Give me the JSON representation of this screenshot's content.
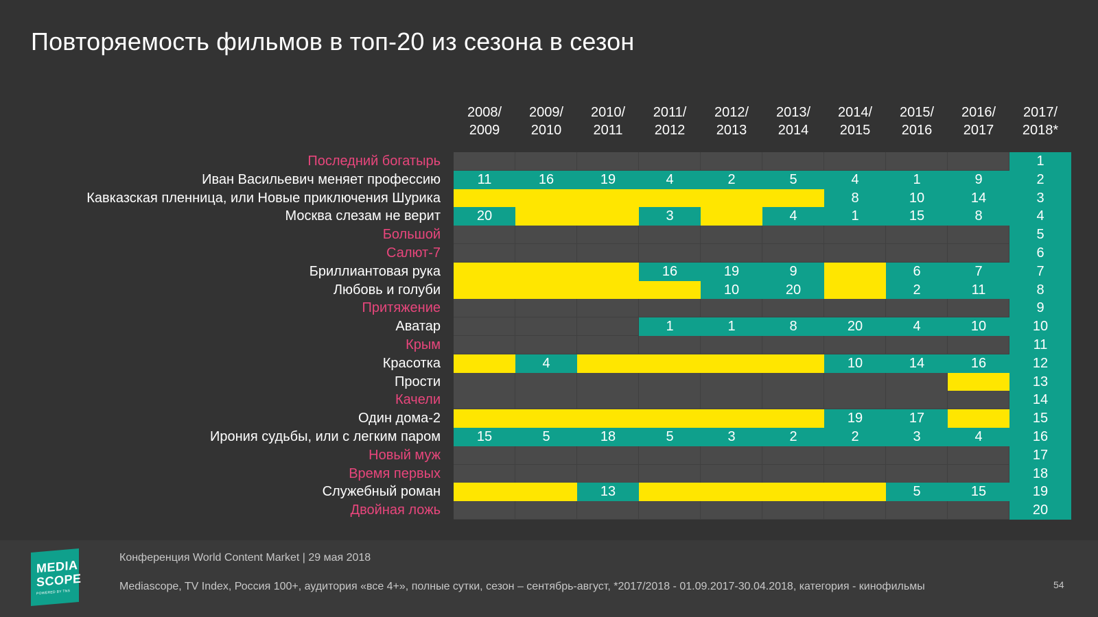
{
  "title": "Повторяемость фильмов в топ-20 из сезона в сезон",
  "colors": {
    "background": "#333333",
    "ranked": "#0fa08c",
    "not_in_top": "#ffe600",
    "empty": "#4a4a4a",
    "new_film_label": "#e8467c",
    "old_film_label": "#ffffff"
  },
  "chart_data": {
    "type": "table",
    "columns": [
      "2008/\n2009",
      "2009/\n2010",
      "2010/\n2011",
      "2011/\n2012",
      "2012/\n2013",
      "2013/\n2014",
      "2014/\n2015",
      "2015/\n2016",
      "2016/\n2017",
      "2017/\n2018*"
    ],
    "rows": [
      {
        "film": "Последний богатырь",
        "new": true,
        "cells": [
          "",
          "",
          "",
          "",
          "",
          "",
          "",
          "",
          "",
          "1"
        ]
      },
      {
        "film": "Иван Васильевич меняет профессию",
        "new": false,
        "cells": [
          "11",
          "16",
          "19",
          "4",
          "2",
          "5",
          "4",
          "1",
          "9",
          "2"
        ]
      },
      {
        "film": "Кавказская пленница, или Новые приключения Шурика",
        "new": false,
        "cells": [
          "Y",
          "Y",
          "Y",
          "Y",
          "Y",
          "Y",
          "8",
          "10",
          "14",
          "3"
        ]
      },
      {
        "film": "Москва слезам не верит",
        "new": false,
        "cells": [
          "20",
          "Y",
          "Y",
          "3",
          "Y",
          "4",
          "1",
          "15",
          "8",
          "4"
        ]
      },
      {
        "film": "Большой",
        "new": true,
        "cells": [
          "",
          "",
          "",
          "",
          "",
          "",
          "",
          "",
          "",
          "5"
        ]
      },
      {
        "film": "Салют-7",
        "new": true,
        "cells": [
          "",
          "",
          "",
          "",
          "",
          "",
          "",
          "",
          "",
          "6"
        ]
      },
      {
        "film": "Бриллиантовая рука",
        "new": false,
        "cells": [
          "Y",
          "Y",
          "Y",
          "16",
          "19",
          "9",
          "Y",
          "6",
          "7",
          "7"
        ]
      },
      {
        "film": "Любовь и голуби",
        "new": false,
        "cells": [
          "Y",
          "Y",
          "Y",
          "Y",
          "10",
          "20",
          "Y",
          "2",
          "11",
          "8"
        ]
      },
      {
        "film": "Притяжение",
        "new": true,
        "cells": [
          "",
          "",
          "",
          "",
          "",
          "",
          "",
          "",
          "",
          "9"
        ]
      },
      {
        "film": "Аватар",
        "new": false,
        "cells": [
          "",
          "",
          "",
          "1",
          "1",
          "8",
          "20",
          "4",
          "10",
          "10"
        ]
      },
      {
        "film": "Крым",
        "new": true,
        "cells": [
          "",
          "",
          "",
          "",
          "",
          "",
          "",
          "",
          "",
          "11"
        ]
      },
      {
        "film": "Красотка",
        "new": false,
        "cells": [
          "Y",
          "4",
          "Y",
          "Y",
          "Y",
          "Y",
          "10",
          "14",
          "16",
          "12"
        ]
      },
      {
        "film": "Прости",
        "new": false,
        "cells": [
          "",
          "",
          "",
          "",
          "",
          "",
          "",
          "",
          "Y",
          "13"
        ]
      },
      {
        "film": "Качели",
        "new": true,
        "cells": [
          "",
          "",
          "",
          "",
          "",
          "",
          "",
          "",
          "",
          "14"
        ]
      },
      {
        "film": "Один дома-2",
        "new": false,
        "cells": [
          "Y",
          "Y",
          "Y",
          "Y",
          "Y",
          "Y",
          "19",
          "17",
          "Y",
          "15"
        ]
      },
      {
        "film": "Ирония судьбы, или с легким паром",
        "new": false,
        "cells": [
          "15",
          "5",
          "18",
          "5",
          "3",
          "2",
          "2",
          "3",
          "4",
          "16"
        ]
      },
      {
        "film": "Новый муж",
        "new": true,
        "cells": [
          "",
          "",
          "",
          "",
          "",
          "",
          "",
          "",
          "",
          "17"
        ]
      },
      {
        "film": "Время первых",
        "new": true,
        "cells": [
          "",
          "",
          "",
          "",
          "",
          "",
          "",
          "",
          "",
          "18"
        ]
      },
      {
        "film": "Служебный роман",
        "new": false,
        "cells": [
          "Y",
          "Y",
          "13",
          "Y",
          "Y",
          "Y",
          "Y",
          "5",
          "15",
          "19"
        ]
      },
      {
        "film": "Двойная ложь",
        "new": true,
        "cells": [
          "",
          "",
          "",
          "",
          "",
          "",
          "",
          "",
          "",
          "20"
        ]
      }
    ]
  },
  "footer": {
    "logo_line1": "MEDIA",
    "logo_line2": "SCOPE",
    "logo_line3": "POWERED BY TNS",
    "conference": "Конференция World Content Market | 29 мая 2018",
    "source": "Mediascope, TV Index, Россия 100+, аудитория «все 4+», полные сутки, сезон – сентябрь-август, *2017/2018 - 01.09.2017-30.04.2018, категория - кинофильмы",
    "page_number": "54"
  }
}
